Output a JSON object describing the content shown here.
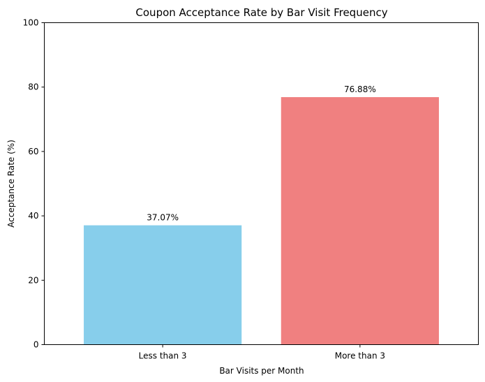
{
  "chart_data": {
    "type": "bar",
    "title": "Coupon Acceptance Rate by Bar Visit Frequency",
    "xlabel": "Bar Visits per Month",
    "ylabel": "Acceptance Rate (%)",
    "categories": [
      "Less than 3",
      "More than 3"
    ],
    "values": [
      37.07,
      76.88
    ],
    "value_labels": [
      "37.07%",
      "76.88%"
    ],
    "colors": [
      "#87ceeb",
      "#f08080"
    ],
    "ylim": [
      0,
      100
    ],
    "yticks": [
      0,
      20,
      40,
      60,
      80,
      100
    ],
    "grid": false,
    "legend": "none"
  }
}
